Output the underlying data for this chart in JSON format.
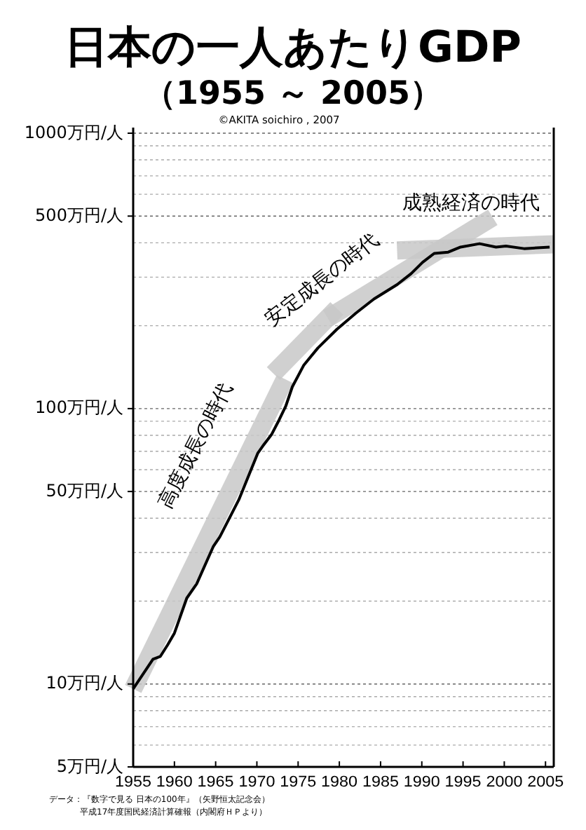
{
  "chart_data": {
    "type": "line",
    "title": "日本の一人あたりGDP",
    "subtitle": "（1955 ～ 2005）",
    "x": [
      1955,
      1957.4,
      1958.3,
      1959.2,
      1960,
      1961.5,
      1962.7,
      1964.7,
      1965.5,
      1967.8,
      1970.1,
      1970.7,
      1971.8,
      1972.7,
      1973.5,
      1974.3,
      1975.7,
      1977.4,
      1979.7,
      1982,
      1984.2,
      1987,
      1988.7,
      1990.1,
      1991.5,
      1993.2,
      1994.7,
      1997,
      1999,
      2000.2,
      2002.4,
      2005.5
    ],
    "series": [
      {
        "color": "#000000",
        "values": [
          9.6,
          12.3,
          12.6,
          13.9,
          15.3,
          20.5,
          23.1,
          31.5,
          34.2,
          46.6,
          68.8,
          73,
          80.7,
          91,
          102,
          120,
          144,
          166,
          194,
          222,
          250,
          282,
          309,
          340,
          366,
          370,
          386,
          397,
          386,
          389,
          381,
          386
        ]
      },
      {
        "type": "line",
        "color": "#c8c8c8",
        "x": [
          1955,
          1973.4
        ],
        "values": [
          9.6,
          128
        ]
      },
      {
        "type": "line",
        "color": "#c8c8c8",
        "x": [
          1972,
          1979.7
        ],
        "values": [
          134,
          231
        ]
      },
      {
        "type": "line",
        "color": "#c8c8c8",
        "x": [
          1978.6,
          1998.6
        ],
        "values": [
          213,
          495
        ]
      },
      {
        "type": "line",
        "color": "#c8c8c8",
        "x": [
          1987,
          2006
        ],
        "values": [
          375,
          395
        ]
      }
    ],
    "xlim": [
      1955,
      2006
    ],
    "xticks": [
      1955,
      1960,
      1965,
      1970,
      1975,
      1980,
      1985,
      1990,
      1995,
      2000,
      2005
    ],
    "log": true,
    "ylim": [
      5,
      1000
    ],
    "yticks": [
      {
        "value": 5,
        "label": "5万円/人"
      },
      {
        "value": 6,
        "label": null
      },
      {
        "value": 7,
        "label": null
      },
      {
        "value": 8,
        "label": null
      },
      {
        "value": 9,
        "label": null
      },
      {
        "value": 10,
        "label": "10万円/人"
      },
      {
        "value": 20,
        "label": null
      },
      {
        "value": 30,
        "label": null
      },
      {
        "value": 40,
        "label": null
      },
      {
        "value": 50,
        "label": "50万円/人"
      },
      {
        "value": 60,
        "label": null
      },
      {
        "value": 70,
        "label": null
      },
      {
        "value": 80,
        "label": null
      },
      {
        "value": 90,
        "label": null
      },
      {
        "value": 100,
        "label": "100万円/人"
      },
      {
        "value": 200,
        "label": null
      },
      {
        "value": 300,
        "label": null
      },
      {
        "value": 400,
        "label": null
      },
      {
        "value": 500,
        "label": "500万円/人"
      },
      {
        "value": 600,
        "label": null
      },
      {
        "value": 700,
        "label": null
      },
      {
        "value": 800,
        "label": null
      },
      {
        "value": 900,
        "label": null
      },
      {
        "value": 1000,
        "label": "1000万円/人"
      }
    ],
    "grid": "y",
    "annotations": [
      "高度成長の時代",
      "安定成長の時代",
      "成熟経済の時代",
      "©AKITA soichiro , 2007",
      "データ：『数字で見る 日本の100年』（矢野恒太記念会）",
      "平成17年度国民経済計算確報（内閣府ＨＰより）"
    ]
  }
}
